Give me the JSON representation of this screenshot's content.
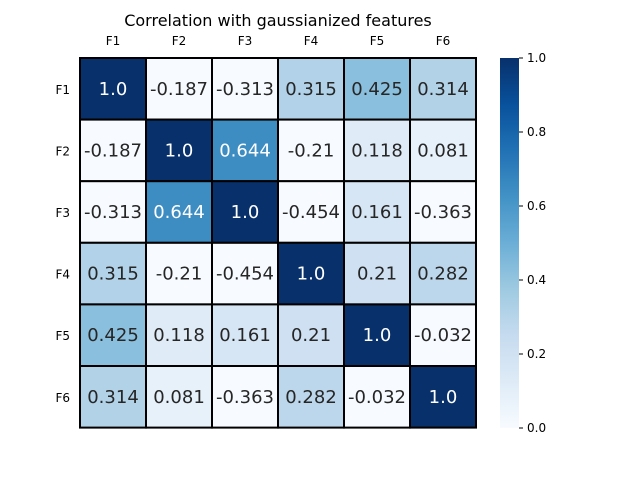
{
  "chart_data": {
    "type": "heatmap",
    "title": "Correlation with gaussianized features",
    "xlabels": [
      "F1",
      "F2",
      "F3",
      "F4",
      "F5",
      "F6"
    ],
    "ylabels": [
      "F1",
      "F2",
      "F3",
      "F4",
      "F5",
      "F6"
    ],
    "values": [
      [
        1.0,
        -0.187,
        -0.313,
        0.315,
        0.425,
        0.314
      ],
      [
        -0.187,
        1.0,
        0.644,
        -0.21,
        0.118,
        0.081
      ],
      [
        -0.313,
        0.644,
        1.0,
        -0.454,
        0.161,
        -0.363
      ],
      [
        0.315,
        -0.21,
        -0.454,
        1.0,
        0.21,
        0.282
      ],
      [
        0.425,
        0.118,
        0.161,
        0.21,
        1.0,
        -0.032
      ],
      [
        0.314,
        0.081,
        -0.363,
        0.282,
        -0.032,
        1.0
      ]
    ],
    "cell_labels": [
      [
        "1.0",
        "-0.187",
        "-0.313",
        "0.315",
        "0.425",
        "0.314"
      ],
      [
        "-0.187",
        "1.0",
        "0.644",
        "-0.21",
        "0.118",
        "0.081"
      ],
      [
        "-0.313",
        "0.644",
        "1.0",
        "-0.454",
        "0.161",
        "-0.363"
      ],
      [
        "0.315",
        "-0.21",
        "-0.454",
        "1.0",
        "0.21",
        "0.282"
      ],
      [
        "0.425",
        "0.118",
        "0.161",
        "0.21",
        "1.0",
        "-0.032"
      ],
      [
        "0.314",
        "0.081",
        "-0.363",
        "0.282",
        "-0.032",
        "1.0"
      ]
    ],
    "color_scale": {
      "name": "Blues",
      "vmin": 0.0,
      "vmax": 1.0,
      "ticks": [
        "0.0",
        "0.2",
        "0.4",
        "0.6",
        "0.8",
        "1.0"
      ],
      "tick_values": [
        0.0,
        0.2,
        0.4,
        0.6,
        0.8,
        1.0
      ]
    },
    "colorbar_position": "right",
    "xlabels_position": "top",
    "cell_border_color": "#000000"
  }
}
